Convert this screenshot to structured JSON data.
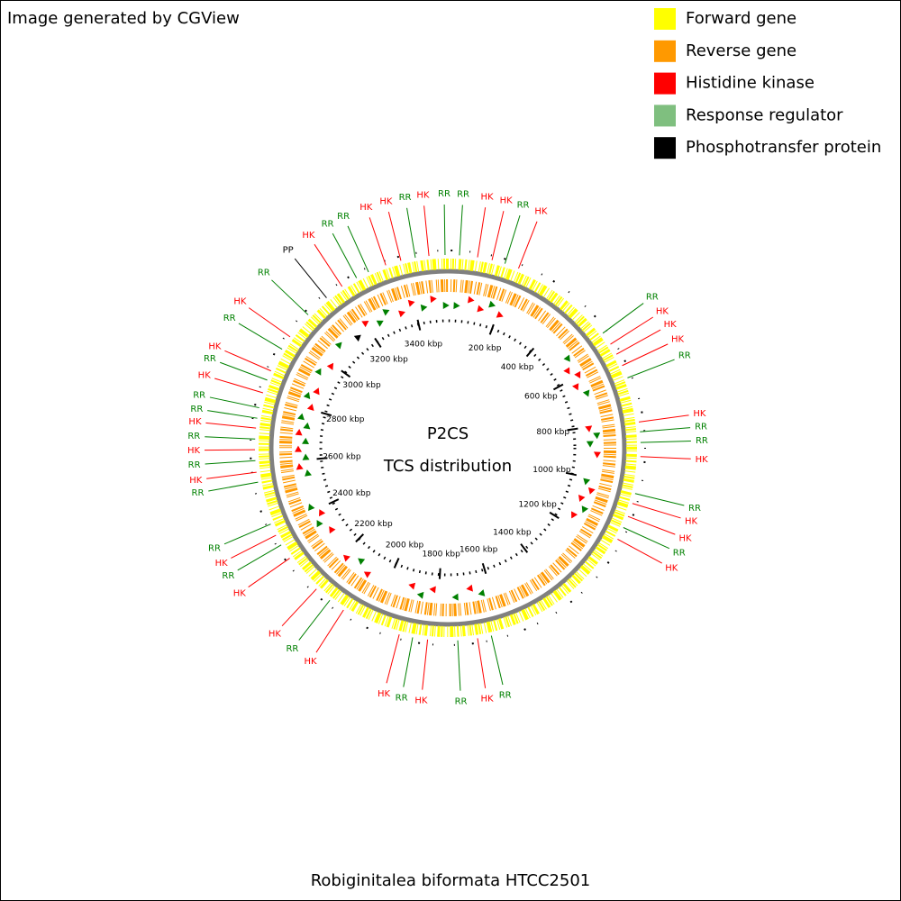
{
  "header": {
    "credit": "Image generated by CGView"
  },
  "legend": [
    {
      "label": "Forward gene",
      "color": "#ffff00"
    },
    {
      "label": "Reverse gene",
      "color": "#ff9900"
    },
    {
      "label": "Histidine kinase",
      "color": "#ff0000"
    },
    {
      "label": "Response regulator",
      "color": "#7fbf7f"
    },
    {
      "label": "Phosphotransfer protein",
      "color": "#000000"
    }
  ],
  "map": {
    "title": "P2CS",
    "subtitle": "TCS distribution",
    "caption": "Robiginitalea biformata HTCC2501",
    "range": [
      0,
      3530
    ],
    "ticks": [
      {
        "value": 200,
        "label": "200 kbp"
      },
      {
        "value": 400,
        "label": "400 kbp"
      },
      {
        "value": 600,
        "label": "600 kbp"
      },
      {
        "value": 800,
        "label": "800 kbp"
      },
      {
        "value": 1000,
        "label": "1000 kbp"
      },
      {
        "value": 1200,
        "label": "1200 kbp"
      },
      {
        "value": 1400,
        "label": "1400 kbp"
      },
      {
        "value": 1600,
        "label": "1600 kbp"
      },
      {
        "value": 1800,
        "label": "1800 kbp"
      },
      {
        "value": 2000,
        "label": "2000 kbp"
      },
      {
        "value": 2200,
        "label": "2200 kbp"
      },
      {
        "value": 2400,
        "label": "2400 kbp"
      },
      {
        "value": 2600,
        "label": "2600 kbp"
      },
      {
        "value": 2800,
        "label": "2800 kbp"
      },
      {
        "value": 3000,
        "label": "3000 kbp"
      },
      {
        "value": 3200,
        "label": "3200 kbp"
      },
      {
        "value": 3400,
        "label": "3400 kbp"
      }
    ],
    "features": [
      {
        "label": "RR",
        "position": 34,
        "color": "#008000"
      },
      {
        "label": "HK",
        "position": 87,
        "color": "#ff0000"
      },
      {
        "label": "HK",
        "position": 130,
        "color": "#ff0000"
      },
      {
        "label": "RR",
        "position": 169,
        "color": "#008000"
      },
      {
        "label": "HK",
        "position": 211,
        "color": "#ff0000"
      },
      {
        "label": "RR",
        "position": 525,
        "color": "#008000"
      },
      {
        "label": "HK",
        "position": 564,
        "color": "#ff0000"
      },
      {
        "label": "HK",
        "position": 598,
        "color": "#ff0000"
      },
      {
        "label": "HK",
        "position": 635,
        "color": "#ff0000"
      },
      {
        "label": "RR",
        "position": 674,
        "color": "#008000"
      },
      {
        "label": "HK",
        "position": 807,
        "color": "#ff0000"
      },
      {
        "label": "RR",
        "position": 836,
        "color": "#008000"
      },
      {
        "label": "RR",
        "position": 867,
        "color": "#008000"
      },
      {
        "label": "HK",
        "position": 908,
        "color": "#ff0000"
      },
      {
        "label": "RR",
        "position": 1017,
        "color": "#008000"
      },
      {
        "label": "HK",
        "position": 1047,
        "color": "#ff0000"
      },
      {
        "label": "HK",
        "position": 1087,
        "color": "#ff0000"
      },
      {
        "label": "RR",
        "position": 1122,
        "color": "#008000"
      },
      {
        "label": "HK",
        "position": 1160,
        "color": "#ff0000"
      },
      {
        "label": "RR",
        "position": 1637,
        "color": "#008000"
      },
      {
        "label": "HK",
        "position": 1678,
        "color": "#ff0000"
      },
      {
        "label": "RR",
        "position": 1736,
        "color": "#008000"
      },
      {
        "label": "HK",
        "position": 1824,
        "color": "#ff0000"
      },
      {
        "label": "RR",
        "position": 1868,
        "color": "#008000"
      },
      {
        "label": "HK",
        "position": 1908,
        "color": "#ff0000"
      },
      {
        "label": "HK",
        "position": 2086,
        "color": "#ff0000"
      },
      {
        "label": "RR",
        "position": 2135,
        "color": "#008000"
      },
      {
        "label": "HK",
        "position": 2186,
        "color": "#ff0000"
      },
      {
        "label": "HK",
        "position": 2305,
        "color": "#ff0000"
      },
      {
        "label": "RR",
        "position": 2351,
        "color": "#008000"
      },
      {
        "label": "HK",
        "position": 2383,
        "color": "#ff0000"
      },
      {
        "label": "RR",
        "position": 2419,
        "color": "#008000"
      },
      {
        "label": "RR",
        "position": 2547,
        "color": "#008000"
      },
      {
        "label": "HK",
        "position": 2576,
        "color": "#ff0000"
      },
      {
        "label": "RR",
        "position": 2610,
        "color": "#008000"
      },
      {
        "label": "HK",
        "position": 2642,
        "color": "#ff0000"
      },
      {
        "label": "RR",
        "position": 2673,
        "color": "#008000"
      },
      {
        "label": "HK",
        "position": 2705,
        "color": "#ff0000"
      },
      {
        "label": "RR",
        "position": 2734,
        "color": "#008000"
      },
      {
        "label": "RR",
        "position": 2765,
        "color": "#008000"
      },
      {
        "label": "HK",
        "position": 2810,
        "color": "#ff0000"
      },
      {
        "label": "RR",
        "position": 2849,
        "color": "#008000"
      },
      {
        "label": "HK",
        "position": 2878,
        "color": "#ff0000"
      },
      {
        "label": "RR",
        "position": 2949,
        "color": "#008000"
      },
      {
        "label": "HK",
        "position": 2992,
        "color": "#ff0000"
      },
      {
        "label": "RR",
        "position": 3075,
        "color": "#008000"
      },
      {
        "label": "PP",
        "position": 3148,
        "color": "#000000"
      },
      {
        "label": "HK",
        "position": 3204,
        "color": "#ff0000"
      },
      {
        "label": "RR",
        "position": 3253,
        "color": "#008000"
      },
      {
        "label": "RR",
        "position": 3292,
        "color": "#008000"
      },
      {
        "label": "HK",
        "position": 3346,
        "color": "#ff0000"
      },
      {
        "label": "HK",
        "position": 3392,
        "color": "#ff0000"
      },
      {
        "label": "RR",
        "position": 3435,
        "color": "#008000"
      },
      {
        "label": "HK",
        "position": 3475,
        "color": "#ff0000"
      },
      {
        "label": "RR",
        "position": 3522,
        "color": "#008000"
      }
    ]
  }
}
